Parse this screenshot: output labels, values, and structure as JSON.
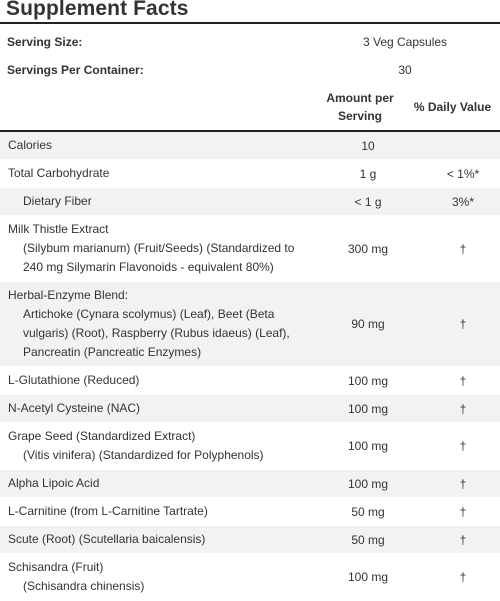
{
  "title": "Supplement Facts",
  "serving_size": {
    "label": "Serving Size:",
    "value": "3 Veg Capsules"
  },
  "servings_per_container": {
    "label": "Servings Per Container:",
    "value": "30"
  },
  "columns": {
    "amount_line1": "Amount per",
    "amount_line2": "Serving",
    "dv": "% Daily Value"
  },
  "rows": [
    {
      "lines": [
        "Calories"
      ],
      "amount": "10",
      "dv": "",
      "indent_first": false
    },
    {
      "lines": [
        "Total Carbohydrate"
      ],
      "amount": "1 g",
      "dv": "< 1%*",
      "indent_first": false
    },
    {
      "lines": [
        "Dietary Fiber"
      ],
      "amount": "< 1 g",
      "dv": "3%*",
      "indent_first": true
    },
    {
      "lines": [
        "Milk Thistle Extract",
        "(Silybum marianum) (Fruit/Seeds) (Standardized to",
        "240 mg Silymarin Flavonoids - equivalent 80%)"
      ],
      "amount": "300 mg",
      "dv": "†",
      "indent_first": false
    },
    {
      "lines": [
        "Herbal-Enzyme Blend:",
        "Artichoke (Cynara scolymus) (Leaf), Beet (Beta",
        "vulgaris) (Root), Raspberry (Rubus idaeus) (Leaf),",
        "Pancreatin (Pancreatic Enzymes)"
      ],
      "amount": "90 mg",
      "dv": "†",
      "indent_first": false
    },
    {
      "lines": [
        "L-Glutathione (Reduced)"
      ],
      "amount": "100 mg",
      "dv": "†",
      "indent_first": false
    },
    {
      "lines": [
        "N-Acetyl Cysteine (NAC)"
      ],
      "amount": "100 mg",
      "dv": "†",
      "indent_first": false
    },
    {
      "lines": [
        "Grape Seed (Standardized Extract)",
        "(Vitis vinifera) (Standardized for Polyphenols)"
      ],
      "amount": "100 mg",
      "dv": "†",
      "indent_first": false
    },
    {
      "lines": [
        "Alpha Lipoic Acid"
      ],
      "amount": "100 mg",
      "dv": "†",
      "indent_first": false
    },
    {
      "lines": [
        "L-Carnitine (from L-Carnitine Tartrate)"
      ],
      "amount": "50 mg",
      "dv": "†",
      "indent_first": false
    },
    {
      "lines": [
        "Scute (Root) (Scutellaria baicalensis)"
      ],
      "amount": "50 mg",
      "dv": "†",
      "indent_first": false
    },
    {
      "lines": [
        "Schisandra (Fruit)",
        "(Schisandra chinensis)"
      ],
      "amount": "100 mg",
      "dv": "†",
      "indent_first": false
    }
  ]
}
